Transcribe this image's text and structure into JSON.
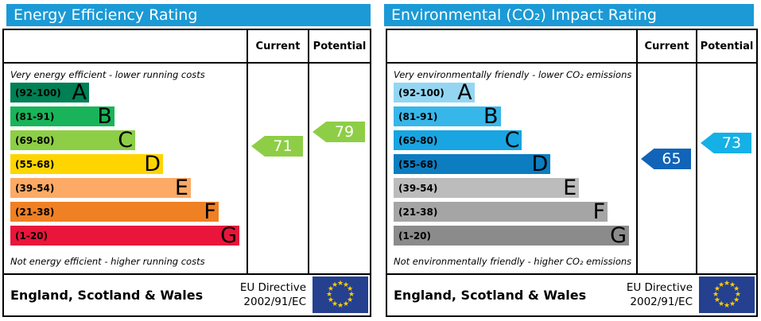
{
  "theme": {
    "header_bg": "#1b9ad6",
    "header_fg": "#ffffff",
    "border": "#000000",
    "eu_flag_bg": "#24408f",
    "eu_star": "#ffcc00"
  },
  "chart_data": [
    {
      "type": "bar",
      "variant": "epc-rating-horizontal-bands",
      "title": "Energy Efficiency Rating",
      "columns": {
        "current": "Current",
        "potential": "Potential"
      },
      "top_caption": "Very energy efficient - lower running costs",
      "bottom_caption": "Not energy efficient - higher running costs",
      "bands": [
        {
          "range": "(92-100)",
          "letter": "A",
          "min": 92,
          "max": 100,
          "color": "#008054",
          "width": "34%"
        },
        {
          "range": "(81-91)",
          "letter": "B",
          "min": 81,
          "max": 91,
          "color": "#19b459",
          "width": "45%"
        },
        {
          "range": "(69-80)",
          "letter": "C",
          "min": 69,
          "max": 80,
          "color": "#8dce46",
          "width": "54%"
        },
        {
          "range": "(55-68)",
          "letter": "D",
          "min": 55,
          "max": 68,
          "color": "#ffd500",
          "width": "66%"
        },
        {
          "range": "(39-54)",
          "letter": "E",
          "min": 39,
          "max": 54,
          "color": "#fcaa65",
          "width": "78%"
        },
        {
          "range": "(21-38)",
          "letter": "F",
          "min": 21,
          "max": 38,
          "color": "#ef8023",
          "width": "90%"
        },
        {
          "range": "(1-20)",
          "letter": "G",
          "min": 1,
          "max": 20,
          "color": "#e9153b",
          "width": "99%"
        }
      ],
      "current": {
        "value": 71,
        "color": "#8dce46"
      },
      "potential": {
        "value": 79,
        "color": "#8dce46"
      },
      "footer": {
        "region": "England, Scotland & Wales",
        "directive_line1": "EU Directive",
        "directive_line2": "2002/91/EC"
      }
    },
    {
      "type": "bar",
      "variant": "epc-rating-horizontal-bands",
      "title": "Environmental (CO₂) Impact Rating",
      "columns": {
        "current": "Current",
        "potential": "Potential"
      },
      "top_caption": "Very environmentally friendly - lower CO₂ emissions",
      "bottom_caption": "Not environmentally friendly - higher CO₂ emissions",
      "bands": [
        {
          "range": "(92-100)",
          "letter": "A",
          "min": 92,
          "max": 100,
          "color": "#94d6f2",
          "width": "34%"
        },
        {
          "range": "(81-91)",
          "letter": "B",
          "min": 81,
          "max": 91,
          "color": "#37b6ea",
          "width": "45%"
        },
        {
          "range": "(69-80)",
          "letter": "C",
          "min": 69,
          "max": 80,
          "color": "#18a5e1",
          "width": "54%"
        },
        {
          "range": "(55-68)",
          "letter": "D",
          "min": 55,
          "max": 68,
          "color": "#0c7dc1",
          "width": "66%"
        },
        {
          "range": "(39-54)",
          "letter": "E",
          "min": 39,
          "max": 54,
          "color": "#bcbcbc",
          "width": "78%"
        },
        {
          "range": "(21-38)",
          "letter": "F",
          "min": 21,
          "max": 38,
          "color": "#a5a5a5",
          "width": "90%"
        },
        {
          "range": "(1-20)",
          "letter": "G",
          "min": 1,
          "max": 20,
          "color": "#8b8b8b",
          "width": "99%"
        }
      ],
      "current": {
        "value": 65,
        "color": "#1164b8"
      },
      "potential": {
        "value": 73,
        "color": "#14b0e6"
      },
      "footer": {
        "region": "England, Scotland & Wales",
        "directive_line1": "EU Directive",
        "directive_line2": "2002/91/EC"
      }
    }
  ]
}
